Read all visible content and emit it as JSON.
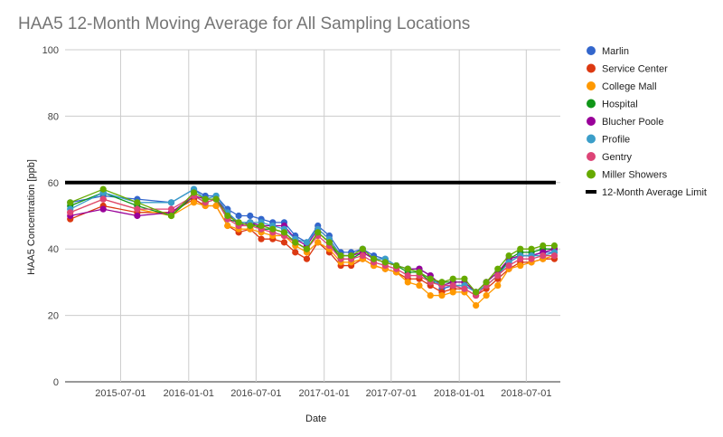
{
  "chart_data": {
    "type": "line",
    "title": "HAA5 12-Month Moving Average for All Sampling Locations",
    "xlabel": "Date",
    "ylabel": "HAA5 Concentration [ppb]",
    "ylim": [
      0,
      100
    ],
    "yticks": [
      0,
      20,
      40,
      60,
      80,
      100
    ],
    "xticks": [
      "2015-07-01",
      "2016-01-01",
      "2016-07-01",
      "2017-01-01",
      "2017-07-01",
      "2018-01-01",
      "2018-07-01"
    ],
    "xlim": [
      "2015-02-01",
      "2018-10-01"
    ],
    "grid": true,
    "legend_position": "right",
    "x": [
      "2015-02-15",
      "2015-05-15",
      "2015-08-15",
      "2015-11-15",
      "2016-01-15",
      "2016-02-15",
      "2016-03-15",
      "2016-04-15",
      "2016-05-15",
      "2016-06-15",
      "2016-07-15",
      "2016-08-15",
      "2016-09-15",
      "2016-10-15",
      "2016-11-15",
      "2016-12-15",
      "2017-01-15",
      "2017-02-15",
      "2017-03-15",
      "2017-04-15",
      "2017-05-15",
      "2017-06-15",
      "2017-07-15",
      "2017-08-15",
      "2017-09-15",
      "2017-10-15",
      "2017-11-15",
      "2017-12-15",
      "2018-01-15",
      "2018-02-15",
      "2018-03-15",
      "2018-04-15",
      "2018-05-15",
      "2018-06-15",
      "2018-07-15",
      "2018-08-15",
      "2018-09-15"
    ],
    "series": [
      {
        "name": "Marlin",
        "color": "#3366cc",
        "values": [
          54,
          56,
          55,
          54,
          58,
          56,
          56,
          52,
          50,
          50,
          49,
          48,
          48,
          44,
          42,
          47,
          44,
          39,
          39,
          40,
          38,
          37,
          35,
          34,
          34,
          32,
          28,
          29,
          29,
          27,
          30,
          33,
          36,
          38,
          38,
          39,
          39
        ]
      },
      {
        "name": "Service Center",
        "color": "#dc3912",
        "values": [
          49,
          53,
          51,
          51,
          55,
          53,
          53,
          47,
          45,
          46,
          43,
          43,
          42,
          39,
          37,
          42,
          39,
          35,
          35,
          37,
          35,
          34,
          33,
          31,
          31,
          29,
          27,
          28,
          28,
          26,
          28,
          31,
          34,
          36,
          36,
          37,
          37
        ]
      },
      {
        "name": "College Mall",
        "color": "#ff9900",
        "values": [
          51,
          55,
          52,
          50,
          54,
          53,
          53,
          47,
          46,
          46,
          45,
          44,
          44,
          41,
          39,
          42,
          40,
          36,
          36,
          37,
          35,
          34,
          33,
          30,
          29,
          26,
          26,
          27,
          27,
          23,
          26,
          29,
          34,
          35,
          36,
          37,
          38
        ]
      },
      {
        "name": "Hospital",
        "color": "#109618",
        "values": [
          53,
          57,
          53,
          50,
          56,
          54,
          55,
          49,
          48,
          48,
          46,
          46,
          45,
          42,
          40,
          45,
          42,
          37,
          37,
          39,
          37,
          36,
          35,
          33,
          33,
          30,
          30,
          30,
          30,
          27,
          29,
          32,
          37,
          39,
          39,
          40,
          40
        ]
      },
      {
        "name": "Blucher Poole",
        "color": "#990099",
        "values": [
          50,
          52,
          50,
          51,
          56,
          55,
          55,
          51,
          47,
          48,
          47,
          47,
          47,
          43,
          41,
          46,
          43,
          38,
          38,
          39,
          37,
          36,
          35,
          34,
          34,
          32,
          29,
          30,
          30,
          27,
          30,
          33,
          37,
          38,
          38,
          39,
          40
        ]
      },
      {
        "name": "Profile",
        "color": "#3b9ec9",
        "values": [
          52,
          57,
          54,
          54,
          58,
          55,
          56,
          51,
          48,
          48,
          48,
          47,
          46,
          43,
          42,
          46,
          43,
          38,
          38,
          40,
          37,
          37,
          35,
          34,
          33,
          31,
          29,
          29,
          29,
          27,
          29,
          32,
          36,
          38,
          38,
          38,
          39
        ]
      },
      {
        "name": "Gentry",
        "color": "#dd4477",
        "values": [
          51,
          55,
          52,
          52,
          56,
          54,
          55,
          49,
          47,
          47,
          46,
          45,
          44,
          42,
          40,
          44,
          41,
          37,
          37,
          38,
          36,
          35,
          34,
          32,
          32,
          30,
          29,
          29,
          28,
          26,
          29,
          32,
          35,
          37,
          37,
          38,
          38
        ]
      },
      {
        "name": "Miller Showers",
        "color": "#66aa00",
        "values": [
          54,
          58,
          54,
          50,
          57,
          55,
          55,
          50,
          48,
          47,
          47,
          46,
          45,
          42,
          40,
          45,
          42,
          38,
          38,
          40,
          37,
          36,
          35,
          34,
          33,
          31,
          30,
          31,
          31,
          27,
          30,
          34,
          38,
          40,
          40,
          41,
          41
        ]
      }
    ],
    "reference_line": {
      "name": "12-Month Average Limit",
      "value": 60,
      "color": "#000000"
    }
  }
}
